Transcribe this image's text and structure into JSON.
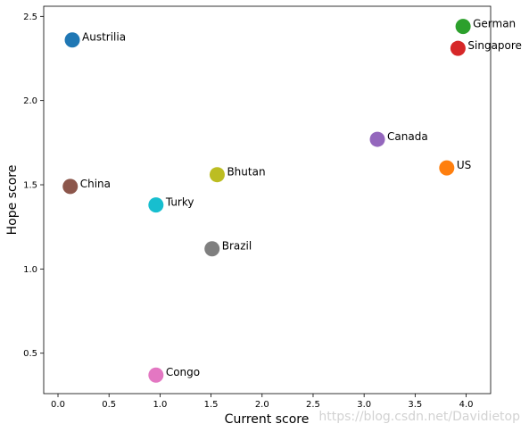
{
  "chart_data": {
    "type": "scatter",
    "xlabel": "Current score",
    "ylabel": "Hope score",
    "xlim": [
      -0.14,
      4.24
    ],
    "ylim": [
      0.26,
      2.56
    ],
    "xticks": [
      "0.0",
      "0.5",
      "1.0",
      "1.5",
      "2.0",
      "2.5",
      "3.0",
      "3.5",
      "4.0"
    ],
    "yticks": [
      "0.5",
      "1.0",
      "1.5",
      "2.0",
      "2.5"
    ],
    "grid": false,
    "points": [
      {
        "label": "Austrilia",
        "x": 0.14,
        "y": 2.36,
        "color": "#1f77b4"
      },
      {
        "label": "US",
        "x": 3.81,
        "y": 1.6,
        "color": "#ff7f0e"
      },
      {
        "label": "German",
        "x": 3.97,
        "y": 2.44,
        "color": "#2ca02c"
      },
      {
        "label": "Singapore",
        "x": 3.92,
        "y": 2.31,
        "color": "#d62728"
      },
      {
        "label": "Canada",
        "x": 3.13,
        "y": 1.77,
        "color": "#9467bd"
      },
      {
        "label": "China",
        "x": 0.12,
        "y": 1.49,
        "color": "#8c564b"
      },
      {
        "label": "Congo",
        "x": 0.96,
        "y": 0.37,
        "color": "#e377c2"
      },
      {
        "label": "Brazil",
        "x": 1.51,
        "y": 1.12,
        "color": "#7f7f7f"
      },
      {
        "label": "Bhutan",
        "x": 1.56,
        "y": 1.56,
        "color": "#bcbd22"
      },
      {
        "label": "Turky",
        "x": 0.96,
        "y": 1.38,
        "color": "#17becf"
      }
    ]
  },
  "watermark": "https://blog.csdn.net/Davidietop"
}
